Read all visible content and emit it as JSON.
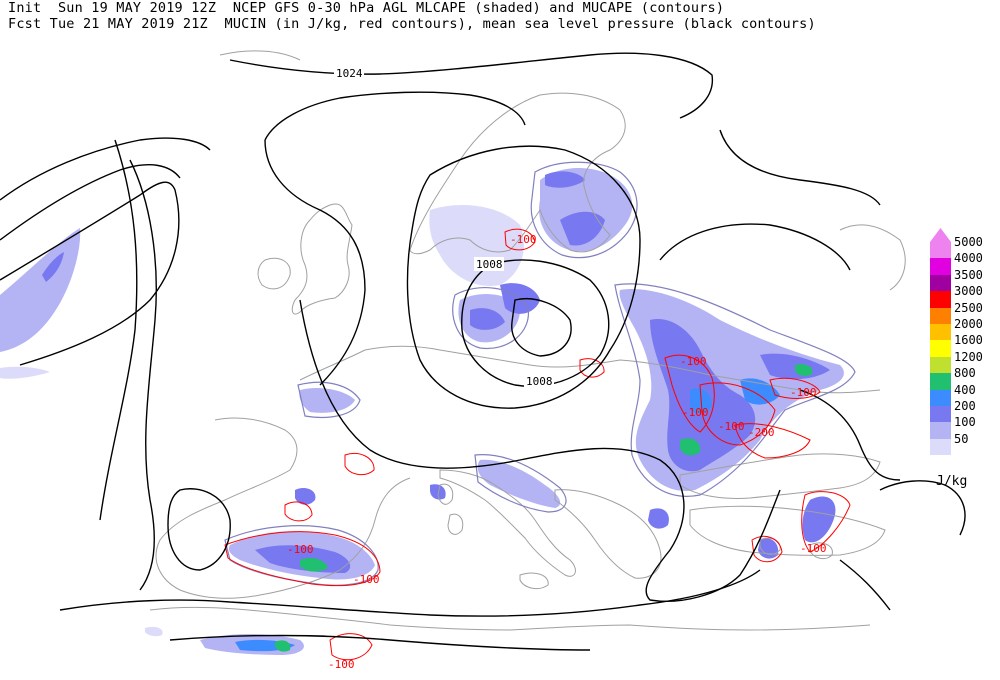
{
  "header": {
    "line1": "Init  Sun 19 MAY 2019 12Z  NCEP GFS 0-30 hPa AGL MLCAPE (shaded) and MUCAPE (contours)",
    "line2": "Fcst Tue 21 MAY 2019 21Z  MUCIN (in J/kg, red contours), mean sea level pressure (black contours)"
  },
  "pressure_labels": [
    "1024",
    "1008",
    "1008"
  ],
  "cin_labels": [
    "-100",
    "-100",
    "-100",
    "-100",
    "-100",
    "-200",
    "-100",
    "-100",
    "-100",
    "-100"
  ],
  "legend": {
    "units": "J/kg",
    "levels": [
      {
        "label": "5000",
        "color": "#ee82ee"
      },
      {
        "label": "4000",
        "color": "#e000e0"
      },
      {
        "label": "3500",
        "color": "#a000a0"
      },
      {
        "label": "3000",
        "color": "#ff0000"
      },
      {
        "label": "2500",
        "color": "#ff8000"
      },
      {
        "label": "2000",
        "color": "#ffc000"
      },
      {
        "label": "1600",
        "color": "#ffff00"
      },
      {
        "label": "1200",
        "color": "#c0e030"
      },
      {
        "label": "800",
        "color": "#20c070"
      },
      {
        "label": "400",
        "color": "#3c8cff"
      },
      {
        "label": "200",
        "color": "#7878f0"
      },
      {
        "label": "100",
        "color": "#b4b4f4"
      },
      {
        "label": "50",
        "color": "#dcdcfa"
      }
    ],
    "top_arrow_color": "#ee82ee"
  },
  "colors": {
    "coast": "#a0a0a0",
    "pressure": "#000000",
    "cin": "#ff0000",
    "mucape": "#8080c0"
  }
}
